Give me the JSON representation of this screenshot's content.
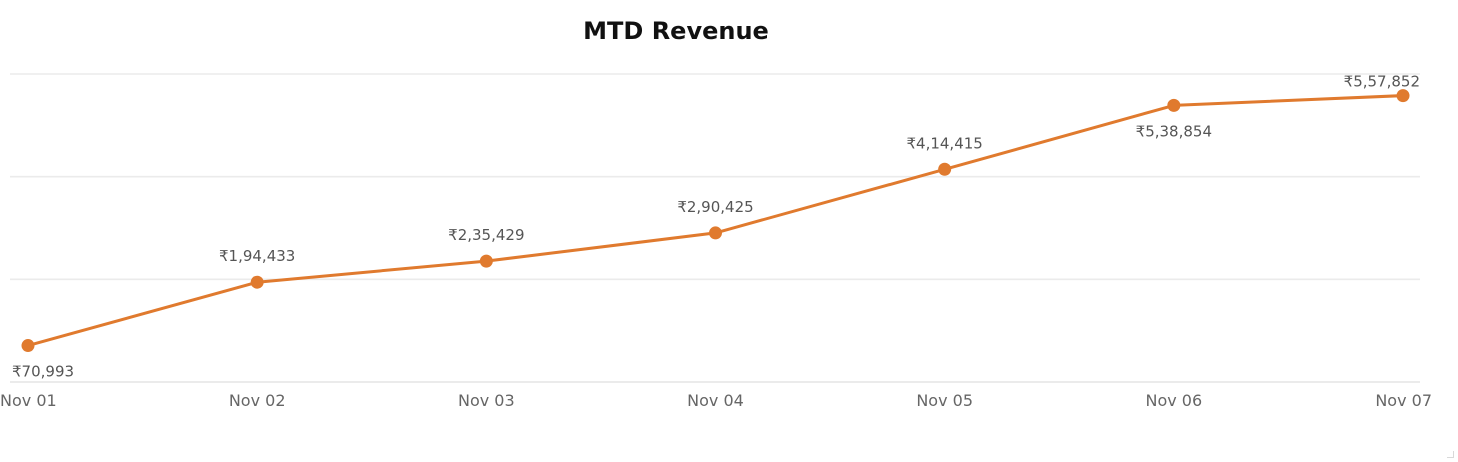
{
  "chart_data": {
    "type": "line",
    "title": "MTD Revenue",
    "xlabel": "",
    "ylabel": "",
    "categories": [
      "Nov 01",
      "Nov 02",
      "Nov 03",
      "Nov 04",
      "Nov 05",
      "Nov 06",
      "Nov 07"
    ],
    "series": [
      {
        "values": [
          70993,
          194433,
          235429,
          290425,
          414415,
          538854,
          557852
        ],
        "data_labels": [
          "₹70,993",
          "₹1,94,433",
          "₹2,35,429",
          "₹2,90,425",
          "₹4,14,415",
          "₹5,38,854",
          "₹5,57,852"
        ],
        "color": "#E07A2E"
      }
    ],
    "ylim": [
      0,
      600000
    ],
    "grid": true,
    "gridline_values": [
      0,
      200000,
      400000,
      600000
    ],
    "y_tick_labels_visible": false,
    "legend": "none"
  },
  "colors": {
    "line": "#E07A2E",
    "grid": "#ebebeb",
    "tick_text": "#666666",
    "label_text": "#555555",
    "title_text": "#111111"
  }
}
